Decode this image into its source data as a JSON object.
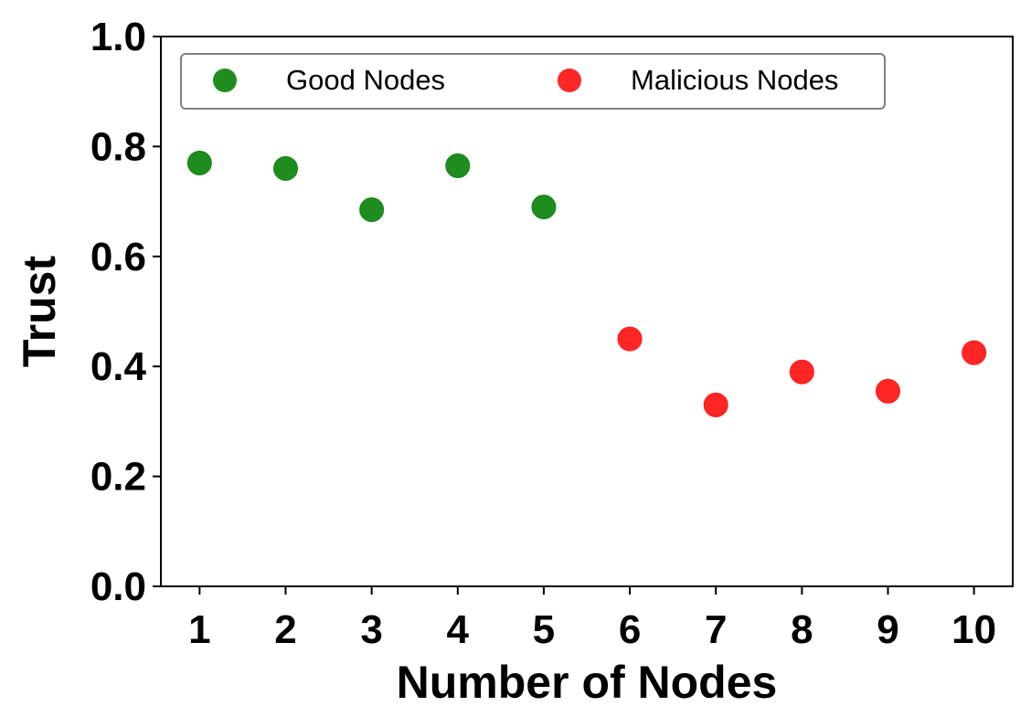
{
  "chart_data": {
    "type": "scatter",
    "title": "",
    "xlabel": "Number of Nodes",
    "ylabel": "Trust",
    "xlim": [
      0.55,
      10.45
    ],
    "ylim": [
      0.0,
      1.0
    ],
    "x_ticks": [
      "1",
      "2",
      "3",
      "4",
      "5",
      "6",
      "7",
      "8",
      "9",
      "10"
    ],
    "y_ticks": [
      "0.0",
      "0.2",
      "0.4",
      "0.6",
      "0.8",
      "1.0"
    ],
    "grid": false,
    "legend_position": "top",
    "series": [
      {
        "name": "Good Nodes",
        "color": "#138613",
        "x": [
          1,
          2,
          3,
          4,
          5
        ],
        "y": [
          0.77,
          0.76,
          0.685,
          0.765,
          0.69
        ]
      },
      {
        "name": "Malicious Nodes",
        "color": "#ff1a1a",
        "x": [
          6,
          7,
          8,
          9,
          10
        ],
        "y": [
          0.45,
          0.33,
          0.39,
          0.355,
          0.425
        ]
      }
    ]
  }
}
